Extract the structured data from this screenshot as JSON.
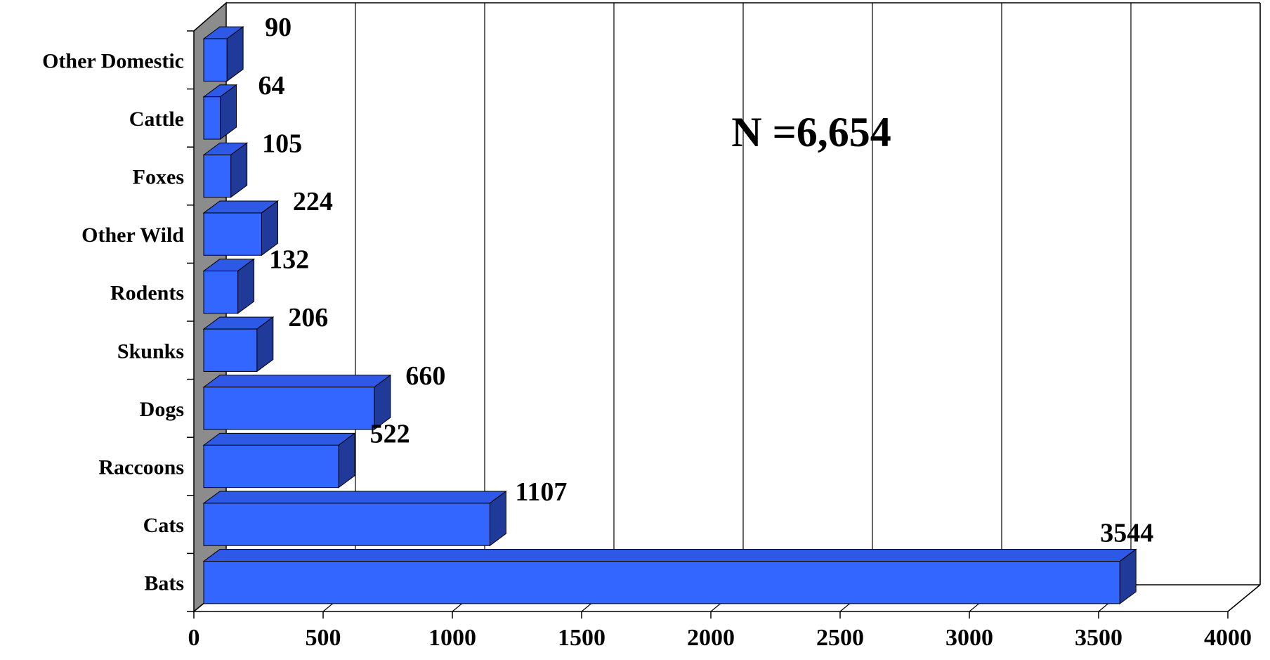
{
  "chart_data": {
    "type": "bar",
    "orientation": "horizontal",
    "style": "3d",
    "categories": [
      "Bats",
      "Cats",
      "Raccoons",
      "Dogs",
      "Skunks",
      "Rodents",
      "Other Wild",
      "Foxes",
      "Cattle",
      "Other Domestic"
    ],
    "values": [
      3544,
      1107,
      522,
      660,
      206,
      132,
      224,
      105,
      64,
      90
    ],
    "value_labels": [
      "3544",
      "1107",
      "522",
      "660",
      "206",
      "132",
      "224",
      "105",
      "64",
      "90"
    ],
    "xlim": [
      0,
      4000
    ],
    "x_ticks": [
      "0",
      "500",
      "1000",
      "1500",
      "2000",
      "2500",
      "3000",
      "3500",
      "4000"
    ],
    "annotation": "N =6,654",
    "grid": true,
    "legend": false,
    "colors": {
      "bar_front": "#3366ff",
      "bar_top": "#2e58e6",
      "bar_side": "#1f3a99",
      "wall_left": "#8c8c8c",
      "gridline": "#000000"
    }
  }
}
